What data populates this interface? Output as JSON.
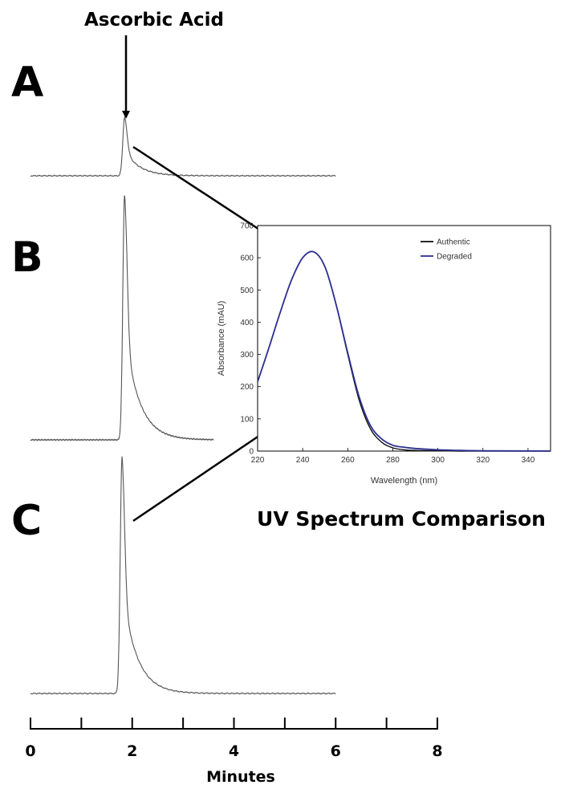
{
  "figure": {
    "annotation_label": "Ascorbic Acid",
    "panel_labels": [
      "A",
      "B",
      "C"
    ],
    "inset_title": "UV Spectrum Comparison",
    "colors": {
      "trace": "#555555",
      "authentic": "#111111",
      "degraded": "#2e3192",
      "axis": "#000000"
    }
  },
  "chart_data": [
    {
      "type": "line",
      "name": "chromatograms",
      "xlabel": "Minutes",
      "x_ticks": [
        0,
        1,
        2,
        3,
        4,
        5,
        6,
        7,
        8
      ],
      "x_tick_labels": [
        "0",
        "2",
        "4",
        "6",
        "8"
      ],
      "xlim": [
        0,
        8
      ],
      "series": [
        {
          "panel": "A",
          "peak_time": 1.85,
          "peak_rel_height": 0.25,
          "x_range": [
            0,
            6
          ]
        },
        {
          "panel": "B",
          "peak_time": 1.85,
          "peak_rel_height": 1.0,
          "x_range": [
            0,
            3.6
          ]
        },
        {
          "panel": "C",
          "peak_time": 1.8,
          "peak_rel_height": 1.0,
          "x_range": [
            0,
            6
          ]
        }
      ]
    },
    {
      "type": "line",
      "name": "uv_spectrum",
      "xlabel": "Wavelength (nm)",
      "ylabel": "Absorbance (mAU)",
      "xlim": [
        220,
        350
      ],
      "ylim": [
        0,
        700
      ],
      "x_ticks": [
        220,
        240,
        260,
        280,
        300,
        320,
        340
      ],
      "y_ticks": [
        0,
        100,
        200,
        300,
        400,
        500,
        600,
        700
      ],
      "legend_position": "top-right",
      "series": [
        {
          "name": "Authentic",
          "color": "#111111",
          "x": [
            220,
            225,
            230,
            235,
            240,
            245,
            250,
            255,
            260,
            265,
            270,
            275,
            280,
            285,
            290,
            300,
            310,
            320,
            350
          ],
          "y": [
            215,
            320,
            430,
            530,
            600,
            618,
            570,
            450,
            300,
            160,
            70,
            28,
            10,
            4,
            2,
            1,
            0,
            0,
            0
          ]
        },
        {
          "name": "Degraded",
          "color": "#2e3192",
          "x": [
            220,
            225,
            230,
            235,
            240,
            245,
            250,
            255,
            260,
            265,
            270,
            275,
            280,
            285,
            290,
            300,
            310,
            320,
            350
          ],
          "y": [
            215,
            320,
            430,
            530,
            600,
            618,
            570,
            450,
            305,
            170,
            80,
            38,
            18,
            12,
            8,
            4,
            2,
            1,
            0
          ]
        }
      ]
    }
  ]
}
